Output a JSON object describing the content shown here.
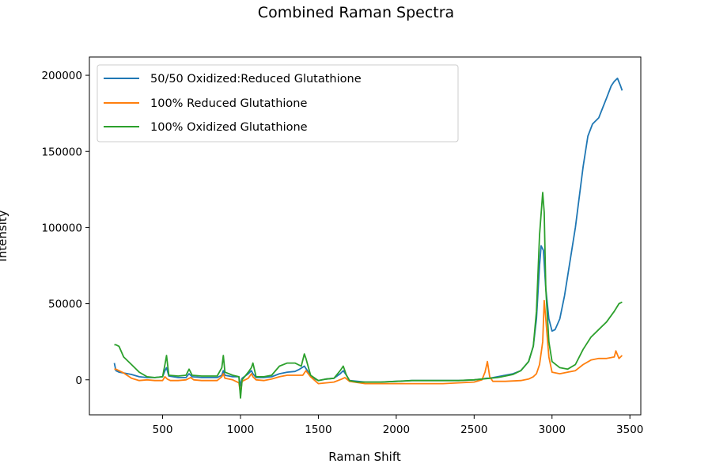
{
  "chart_data": {
    "type": "line",
    "title": "Combined Raman Spectra",
    "xlabel": "Raman Shift",
    "ylabel": "Intensity",
    "xlim": [
      30,
      3570
    ],
    "ylim": [
      -23000,
      212000
    ],
    "xticks": [
      500,
      1000,
      1500,
      2000,
      2500,
      3000,
      3500
    ],
    "yticks": [
      0,
      50000,
      100000,
      150000,
      200000
    ],
    "legend_position": "upper-left",
    "series": [
      {
        "name": "50/50 Oxidized:Reduced Glutathione",
        "color": "#1f77b4",
        "x": [
          190,
          200,
          220,
          250,
          300,
          350,
          400,
          450,
          500,
          515,
          525,
          540,
          600,
          650,
          670,
          690,
          750,
          800,
          850,
          880,
          890,
          900,
          950,
          990,
          1000,
          1010,
          1050,
          1070,
          1080,
          1100,
          1150,
          1200,
          1250,
          1300,
          1350,
          1380,
          1410,
          1430,
          1450,
          1500,
          1550,
          1600,
          1640,
          1660,
          1680,
          1700,
          1750,
          1800,
          1850,
          1900,
          2000,
          2100,
          2200,
          2300,
          2400,
          2500,
          2550,
          2580,
          2600,
          2650,
          2700,
          2750,
          2800,
          2850,
          2880,
          2900,
          2920,
          2930,
          2945,
          2960,
          2980,
          3000,
          3020,
          3050,
          3080,
          3100,
          3150,
          3200,
          3230,
          3260,
          3300,
          3350,
          3380,
          3400,
          3420,
          3440,
          3450
        ],
        "y": [
          11000,
          6000,
          5000,
          4500,
          3500,
          2000,
          1500,
          1500,
          2000,
          6000,
          8000,
          2500,
          1500,
          1500,
          4000,
          2000,
          1500,
          1500,
          1500,
          3000,
          6000,
          3000,
          2000,
          2000,
          -4000,
          1000,
          4000,
          6000,
          4000,
          1500,
          1500,
          2000,
          4000,
          5000,
          5500,
          7000,
          9000,
          6000,
          2000,
          -500,
          500,
          1000,
          4000,
          6000,
          3000,
          -500,
          -1000,
          -1500,
          -1500,
          -1500,
          -1000,
          -500,
          -500,
          -500,
          -500,
          0,
          500,
          1000,
          1000,
          2000,
          3000,
          4000,
          6000,
          12000,
          22000,
          40000,
          75000,
          88000,
          85000,
          60000,
          40000,
          32000,
          33000,
          40000,
          55000,
          68000,
          100000,
          140000,
          160000,
          168000,
          172000,
          185000,
          193000,
          196000,
          198000,
          193000,
          190000
        ]
      },
      {
        "name": "100% Reduced Glutathione",
        "color": "#ff7f0e",
        "x": [
          190,
          200,
          250,
          300,
          350,
          400,
          450,
          500,
          515,
          530,
          550,
          600,
          650,
          680,
          700,
          750,
          800,
          850,
          880,
          890,
          900,
          950,
          990,
          1000,
          1010,
          1050,
          1070,
          1080,
          1100,
          1150,
          1200,
          1250,
          1300,
          1350,
          1400,
          1420,
          1450,
          1500,
          1550,
          1600,
          1650,
          1670,
          1700,
          1800,
          1900,
          2000,
          2100,
          2200,
          2300,
          2400,
          2500,
          2550,
          2570,
          2585,
          2600,
          2620,
          2700,
          2800,
          2850,
          2880,
          2900,
          2920,
          2940,
          2950,
          2960,
          2980,
          3000,
          3050,
          3100,
          3150,
          3200,
          3250,
          3300,
          3350,
          3400,
          3410,
          3430,
          3450
        ],
        "y": [
          7000,
          7000,
          4500,
          1000,
          -500,
          0,
          -500,
          -500,
          2000,
          500,
          -500,
          -500,
          0,
          1500,
          0,
          -500,
          -500,
          -500,
          2000,
          4000,
          1000,
          0,
          -2000,
          -9000,
          -1000,
          1000,
          4000,
          2000,
          0,
          -500,
          500,
          2000,
          3000,
          3000,
          3000,
          6000,
          2000,
          -2500,
          -2000,
          -1500,
          500,
          1500,
          -1000,
          -2500,
          -2500,
          -2500,
          -2500,
          -2500,
          -2500,
          -2000,
          -1500,
          0,
          5000,
          12000,
          2000,
          -1000,
          -1000,
          -500,
          500,
          2000,
          4000,
          10000,
          25000,
          52000,
          40000,
          15000,
          5000,
          4000,
          5000,
          6000,
          10000,
          13000,
          14000,
          14000,
          15000,
          19000,
          14000,
          16000
        ]
      },
      {
        "name": "100% Oxidized Glutathione",
        "color": "#2ca02c",
        "x": [
          190,
          200,
          220,
          250,
          300,
          350,
          400,
          450,
          500,
          515,
          525,
          540,
          600,
          650,
          670,
          690,
          750,
          800,
          850,
          880,
          890,
          900,
          950,
          990,
          1000,
          1010,
          1050,
          1070,
          1080,
          1100,
          1150,
          1200,
          1250,
          1300,
          1350,
          1390,
          1410,
          1420,
          1450,
          1500,
          1550,
          1600,
          1640,
          1660,
          1680,
          1700,
          1750,
          1800,
          1850,
          1900,
          2000,
          2100,
          2200,
          2300,
          2400,
          2500,
          2550,
          2600,
          2650,
          2700,
          2750,
          2800,
          2850,
          2880,
          2900,
          2920,
          2940,
          2950,
          2960,
          2980,
          3000,
          3050,
          3100,
          3150,
          3200,
          3250,
          3300,
          3350,
          3400,
          3430,
          3450
        ],
        "y": [
          23000,
          23000,
          22000,
          15000,
          10000,
          5000,
          2000,
          1500,
          2000,
          10000,
          16000,
          3000,
          2500,
          3000,
          7000,
          3000,
          2500,
          2500,
          2500,
          8000,
          16000,
          5000,
          3000,
          2000,
          -12000,
          0,
          5000,
          8000,
          11000,
          2000,
          2000,
          3000,
          9000,
          11000,
          11000,
          9000,
          17000,
          14000,
          3000,
          -500,
          500,
          1000,
          6000,
          9000,
          3000,
          -500,
          -1500,
          -1500,
          -1500,
          -1500,
          -1000,
          -500,
          -500,
          -500,
          -500,
          0,
          500,
          1000,
          1500,
          2500,
          3500,
          6000,
          12000,
          22000,
          45000,
          95000,
          123000,
          110000,
          60000,
          25000,
          12000,
          8000,
          7000,
          10000,
          20000,
          28000,
          33000,
          38000,
          45000,
          50000,
          51000
        ]
      }
    ]
  }
}
